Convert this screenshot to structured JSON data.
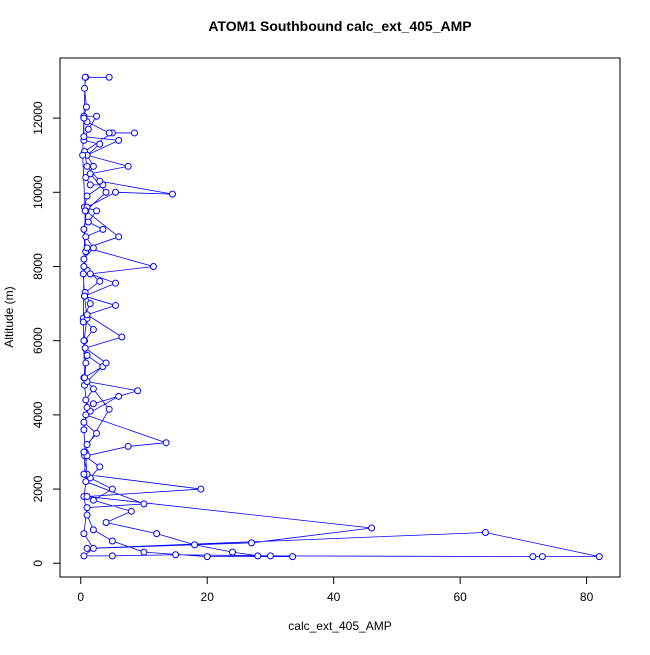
{
  "chart_data": {
    "type": "line",
    "markers": "circle",
    "title": "ATOM1 Southbound calc_ext_405_AMP",
    "x_label": "calc_ext_405_AMP",
    "y_label": "Altitude (m)",
    "xlim": [
      -3.28,
      85.28
    ],
    "ylim": [
      -370,
      13620
    ],
    "xticks": [
      0,
      20,
      40,
      60,
      80
    ],
    "yticks": [
      0,
      2000,
      4000,
      6000,
      8000,
      10000,
      12000
    ],
    "series": [
      {
        "color": "#0000ff",
        "x": [
          4.5,
          0.8,
          0.6,
          0.9,
          0.5,
          2.5,
          1.2,
          0.5,
          3,
          1,
          2,
          0.8,
          1.5,
          3.5,
          1,
          0.6,
          2.5,
          1.2,
          3.5,
          0.8,
          2,
          0.5,
          1,
          3,
          0.7,
          1.5,
          0.4,
          2,
          0.6,
          1,
          3.5,
          0.5,
          2,
          0.8,
          1.5,
          0.5,
          2.5,
          1,
          0.6,
          3,
          1.5,
          5,
          2,
          8,
          4,
          12,
          18,
          24,
          28,
          33.5,
          20,
          10,
          5,
          2,
          1,
          0.5,
          1,
          0.7,
          0.5,
          1,
          0.6,
          0.8,
          0.5,
          1,
          0.6,
          0.4,
          0.8,
          0.5,
          1,
          5.5,
          14.5,
          3,
          1,
          0.6,
          5,
          8.5,
          4.5,
          1,
          0.5,
          0.5,
          6,
          1,
          7.5,
          1.5,
          4,
          0.8,
          6,
          1,
          11.5,
          1.5,
          5.5,
          0.6,
          5.5,
          1,
          6.5,
          0.7,
          4,
          1,
          9,
          2,
          6,
          0.8,
          13.5,
          7.5,
          1,
          0.5,
          19,
          1,
          46,
          27,
          1,
          64,
          82,
          73,
          71.5,
          30,
          15,
          5,
          0.5,
          2,
          0.5,
          1,
          10,
          0.8,
          0.5,
          4.5,
          0.6,
          0.4,
          0.5,
          0.7,
          0.3,
          0.5,
          0.7
        ],
        "values": [
          13100,
          13100,
          12800,
          12300,
          12050,
          12050,
          11700,
          11400,
          11300,
          11000,
          10700,
          10400,
          10200,
          10200,
          9900,
          9600,
          9500,
          9200,
          9000,
          8800,
          8500,
          8200,
          7900,
          7600,
          7300,
          7000,
          6600,
          6300,
          6000,
          5600,
          5300,
          5000,
          4700,
          4400,
          4100,
          3800,
          3500,
          3200,
          2900,
          2600,
          2300,
          2000,
          1700,
          1400,
          1100,
          800,
          500,
          300,
          200,
          180,
          180,
          300,
          600,
          900,
          1300,
          1800,
          2400,
          3000,
          3600,
          4200,
          4800,
          5400,
          6000,
          6600,
          7200,
          7800,
          8400,
          9000,
          9600,
          10000,
          9950,
          10300,
          10700,
          11100,
          11600,
          11600,
          11600,
          11900,
          12000,
          11500,
          11400,
          11000,
          10700,
          10500,
          10000,
          9500,
          8800,
          8500,
          8000,
          7800,
          7550,
          7200,
          6950,
          6700,
          6100,
          5800,
          5400,
          4900,
          4650,
          4300,
          4500,
          4000,
          3250,
          3150,
          2900,
          2400,
          2000,
          1800,
          950,
          550,
          400,
          830,
          180,
          180,
          180,
          200,
          230,
          200,
          200,
          400,
          800,
          1500,
          1600,
          2200,
          3000,
          4150,
          5000,
          6500,
          8000,
          9500,
          11000,
          12000,
          13100
        ]
      }
    ]
  }
}
